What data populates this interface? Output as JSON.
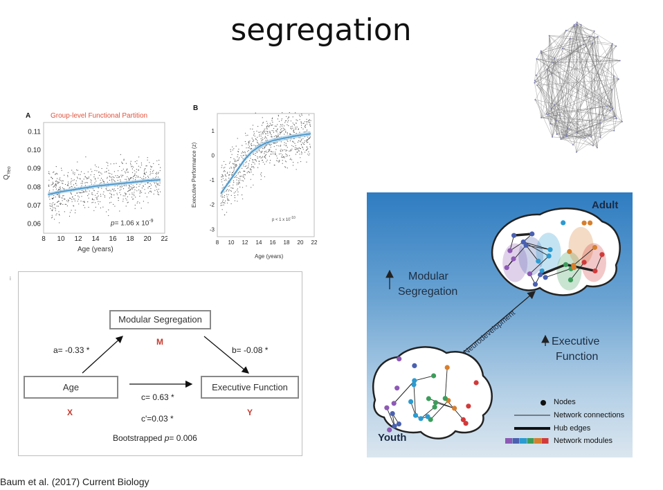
{
  "title": "segregation",
  "citation": "Baum et al. (2017) Current Biology",
  "panel_a": {
    "letter": "A",
    "title": "Group-level Functional Partition",
    "title_color": "#e0523c",
    "ylabel": "Q",
    "ylabel_sub": "Yeo",
    "xlabel": "Age (years)",
    "p_prefix": "p",
    "p_text": "= 1.06 x 10",
    "p_exp": "-9",
    "chart_data": {
      "type": "scatter",
      "x_ticks": [
        "8",
        "10",
        "12",
        "14",
        "16",
        "18",
        "20",
        "22"
      ],
      "y_ticks": [
        "0.06",
        "0.07",
        "0.08",
        "0.09",
        "0.10",
        "0.11"
      ],
      "xlim": [
        8,
        22
      ],
      "ylim": [
        0.055,
        0.115
      ],
      "fit": {
        "x": [
          8.5,
          10,
          12,
          14,
          16,
          18,
          20,
          21.5
        ],
        "y": [
          0.076,
          0.0775,
          0.079,
          0.0805,
          0.0815,
          0.0825,
          0.0835,
          0.084
        ]
      }
    }
  },
  "panel_b": {
    "letter": "B",
    "ylabel": "Executive Performance (z)",
    "xlabel": "Age (years)",
    "p_text": "p < 1 x 10",
    "p_exp": "-10",
    "chart_data": {
      "type": "scatter",
      "x_ticks": [
        "8",
        "10",
        "12",
        "14",
        "16",
        "18",
        "20",
        "22"
      ],
      "y_ticks": [
        "-3",
        "-2",
        "-1",
        "0",
        "1"
      ],
      "xlim": [
        8,
        22
      ],
      "ylim": [
        -3.3,
        1.7
      ],
      "fit": {
        "x": [
          8.5,
          10,
          11,
          12,
          13,
          14,
          15,
          16,
          18,
          20,
          21.5
        ],
        "y": [
          -1.55,
          -0.95,
          -0.55,
          -0.15,
          0.15,
          0.35,
          0.5,
          0.6,
          0.72,
          0.82,
          0.88
        ]
      }
    }
  },
  "mediation": {
    "small_label": "i",
    "m_box": "Modular Segregation",
    "m_letter": "M",
    "x_box": "Age",
    "x_letter": "X",
    "y_box": "Executive Function",
    "y_letter": "Y",
    "a_path": "a= -0.33 *",
    "b_path": "b= -0.08 *",
    "c_path": "c= 0.63 *",
    "c_prime": "c'=0.03 *",
    "bootstrap_prefix": "Bootstrapped ",
    "bootstrap_p": "p",
    "bootstrap_value": "= 0.006"
  },
  "network": {
    "adult": "Adult",
    "youth": "Youth",
    "arrow_label": "Neurodevelopment",
    "modular_1": "Modular",
    "modular_2": "Segregation",
    "exec_1": "Executive",
    "exec_2": "Function",
    "legend": {
      "nodes": "Nodes",
      "connections": "Network connections",
      "hub": "Hub edges",
      "modules": "Network modules"
    },
    "module_colors": [
      "#8e59b5",
      "#4a60b0",
      "#2b9bd1",
      "#3c9d5a",
      "#d77f2e",
      "#d23a3a"
    ]
  }
}
